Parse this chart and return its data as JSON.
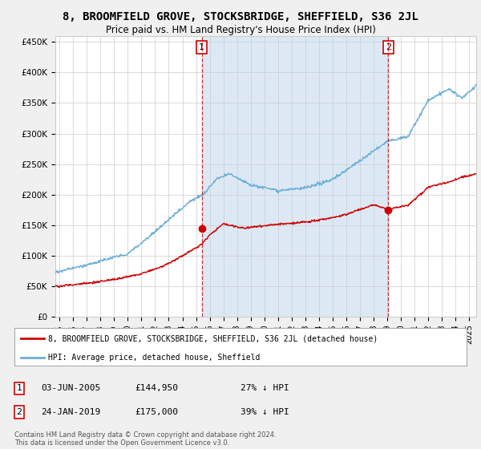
{
  "title": "8, BROOMFIELD GROVE, STOCKSBRIDGE, SHEFFIELD, S36 2JL",
  "subtitle": "Price paid vs. HM Land Registry's House Price Index (HPI)",
  "ylabel_ticks": [
    "£0",
    "£50K",
    "£100K",
    "£150K",
    "£200K",
    "£250K",
    "£300K",
    "£350K",
    "£400K",
    "£450K"
  ],
  "ytick_values": [
    0,
    50000,
    100000,
    150000,
    200000,
    250000,
    300000,
    350000,
    400000,
    450000
  ],
  "ylim": [
    0,
    460000
  ],
  "xlim_start": 1994.7,
  "xlim_end": 2025.5,
  "hpi_color": "#6baed6",
  "hpi_fill_color": "#dce9f5",
  "price_color": "#CC0000",
  "marker1_date": 2005.42,
  "marker1_price": 144950,
  "marker2_date": 2019.07,
  "marker2_price": 175000,
  "vline1_x": 2005.42,
  "vline2_x": 2019.07,
  "legend_house_label": "8, BROOMFIELD GROVE, STOCKSBRIDGE, SHEFFIELD, S36 2JL (detached house)",
  "legend_hpi_label": "HPI: Average price, detached house, Sheffield",
  "note1_date": "03-JUN-2005",
  "note1_price": "£144,950",
  "note1_text": "27% ↓ HPI",
  "note2_date": "24-JAN-2019",
  "note2_price": "£175,000",
  "note2_text": "39% ↓ HPI",
  "footer": "Contains HM Land Registry data © Crown copyright and database right 2024.\nThis data is licensed under the Open Government Licence v3.0.",
  "background_color": "#f0f0f0",
  "plot_bg_color": "#ffffff",
  "x_tick_years": [
    1995,
    1996,
    1997,
    1998,
    1999,
    2000,
    2001,
    2002,
    2003,
    2004,
    2005,
    2006,
    2007,
    2008,
    2009,
    2010,
    2011,
    2012,
    2013,
    2014,
    2015,
    2016,
    2017,
    2018,
    2019,
    2020,
    2021,
    2022,
    2023,
    2024,
    2025
  ]
}
